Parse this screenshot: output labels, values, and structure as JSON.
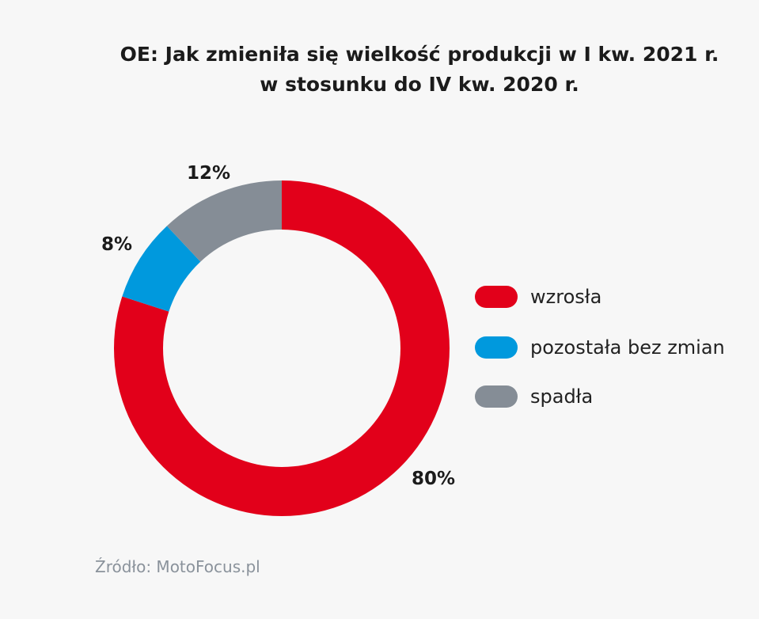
{
  "chart_data": {
    "type": "pie",
    "donut": true,
    "title_lines": [
      "OE: Jak zmieniła się wielkość produkcji w I kw. 2021 r.",
      "w stosunku do IV kw. 2020 r."
    ],
    "slices": [
      {
        "name": "wzrosła",
        "value": 80,
        "label": "80%",
        "color": "#e2001a"
      },
      {
        "name": "pozostała bez zmian",
        "value": 8,
        "label": "8%",
        "color": "#0099dd"
      },
      {
        "name": "spadła",
        "value": 12,
        "label": "12%",
        "color": "#858d96"
      }
    ],
    "legend_position": "right"
  },
  "source": "Źródło: MotoFocus.pl"
}
